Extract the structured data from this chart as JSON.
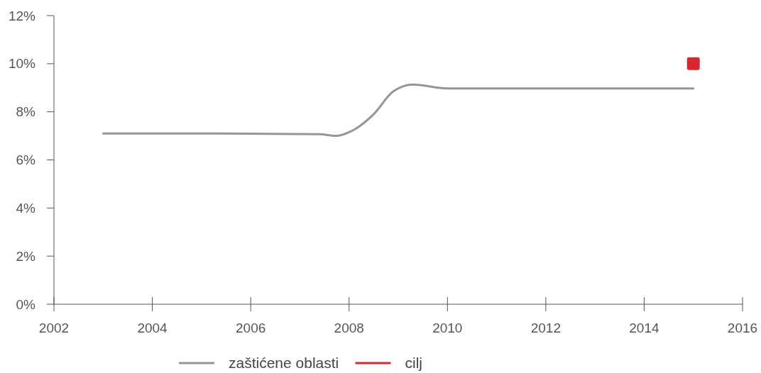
{
  "chart_data": {
    "type": "line",
    "xlim": [
      2002,
      2016
    ],
    "xticks": [
      2002,
      2004,
      2006,
      2008,
      2010,
      2012,
      2014,
      2016
    ],
    "ylim": [
      0,
      12
    ],
    "yticks": [
      {
        "value": 0,
        "label": "0%"
      },
      {
        "value": 2,
        "label": "2%"
      },
      {
        "value": 4,
        "label": "4%"
      },
      {
        "value": 6,
        "label": "6%"
      },
      {
        "value": 8,
        "label": "8%"
      },
      {
        "value": 10,
        "label": "10%"
      },
      {
        "value": 12,
        "label": "12%"
      }
    ],
    "grid": false,
    "legend": "bottom",
    "series": [
      {
        "name": "zaštićene oblasti",
        "color": "#939598",
        "x": [
          2003,
          2005,
          2007.4,
          2007.75,
          2008,
          2008.5,
          2008.9,
          2009.3,
          2010,
          2015
        ],
        "values": [
          7.1,
          7.1,
          7.07,
          7.0,
          7.15,
          7.9,
          8.85,
          9.13,
          8.97,
          8.97
        ]
      },
      {
        "name": "cilj",
        "type": "scatter",
        "marker": "square",
        "color": "#d7282f",
        "x": [
          2015
        ],
        "values": [
          10
        ]
      }
    ]
  }
}
